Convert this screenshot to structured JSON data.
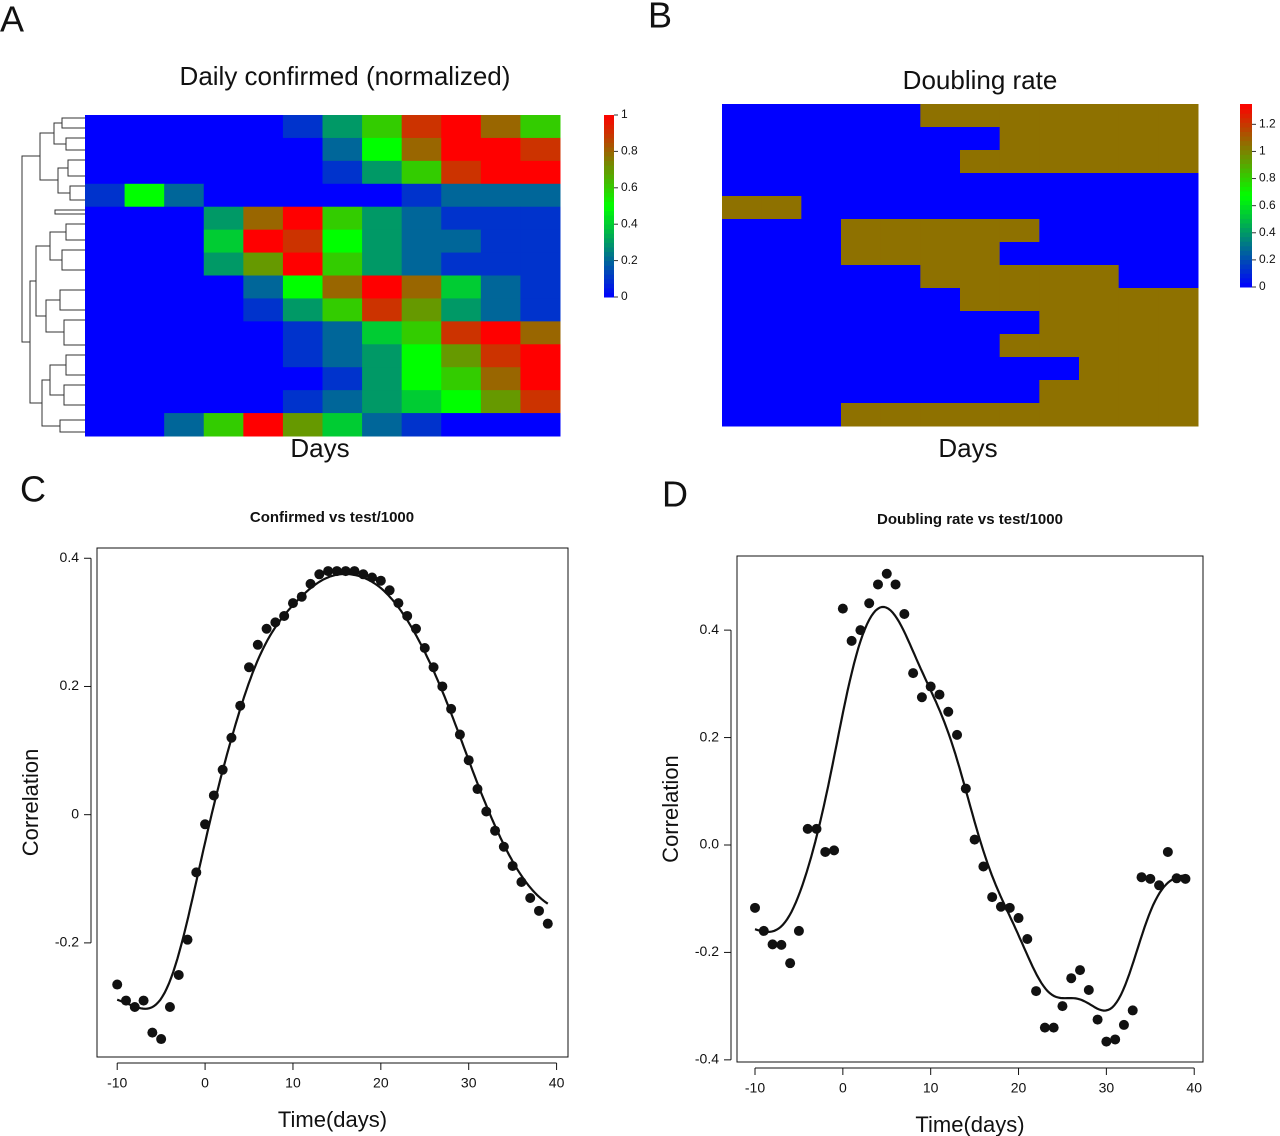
{
  "chart_data": [
    {
      "type": "heatmap",
      "panel": "A",
      "title": "Daily confirmed (normalized)",
      "x_label": "Days",
      "colors": [
        "#0000ff",
        "#00ff00",
        "#ff0000"
      ],
      "zlim": [
        0,
        1
      ],
      "zticks": [
        0,
        0.2,
        0.4,
        0.6,
        0.8,
        1
      ],
      "matrix": [
        [
          0,
          0,
          0,
          0,
          0,
          0.1,
          0.3,
          0.6,
          0.9,
          1,
          0.8,
          0.6
        ],
        [
          0,
          0,
          0,
          0,
          0,
          0,
          0.2,
          0.5,
          0.8,
          1,
          1,
          0.9
        ],
        [
          0,
          0,
          0,
          0,
          0,
          0,
          0.1,
          0.3,
          0.6,
          0.9,
          1,
          1
        ],
        [
          0.1,
          0.5,
          0.2,
          0,
          0,
          0,
          0,
          0,
          0.1,
          0.2,
          0.2,
          0.2
        ],
        [
          0,
          0,
          0,
          0.3,
          0.8,
          1,
          0.6,
          0.3,
          0.2,
          0.1,
          0.1,
          0.1
        ],
        [
          0,
          0,
          0,
          0.4,
          1,
          0.9,
          0.5,
          0.3,
          0.2,
          0.2,
          0.1,
          0.1
        ],
        [
          0,
          0,
          0,
          0.3,
          0.7,
          1,
          0.6,
          0.3,
          0.2,
          0.1,
          0.1,
          0.1
        ],
        [
          0,
          0,
          0,
          0,
          0.2,
          0.5,
          0.8,
          1,
          0.8,
          0.4,
          0.2,
          0.1
        ],
        [
          0,
          0,
          0,
          0,
          0.1,
          0.3,
          0.6,
          0.9,
          0.7,
          0.3,
          0.2,
          0.1
        ],
        [
          0,
          0,
          0,
          0,
          0,
          0.1,
          0.2,
          0.4,
          0.6,
          0.9,
          1,
          0.8
        ],
        [
          0,
          0,
          0,
          0,
          0,
          0.1,
          0.2,
          0.3,
          0.5,
          0.7,
          0.9,
          1
        ],
        [
          0,
          0,
          0,
          0,
          0,
          0,
          0.1,
          0.3,
          0.5,
          0.6,
          0.8,
          1
        ],
        [
          0,
          0,
          0,
          0,
          0,
          0.1,
          0.2,
          0.3,
          0.4,
          0.5,
          0.7,
          0.9
        ],
        [
          0,
          0,
          0.2,
          0.6,
          1,
          0.7,
          0.4,
          0.2,
          0.1,
          0,
          0,
          0
        ]
      ]
    },
    {
      "type": "heatmap",
      "panel": "B",
      "title": "Doubling rate",
      "x_label": "Days",
      "colors": [
        "#0000ff",
        "#00ff00",
        "#ff0000"
      ],
      "zlim": [
        0,
        1.35
      ],
      "zticks": [
        0,
        0.2,
        0.4,
        0.6,
        0.8,
        1,
        1.2
      ],
      "matrix": [
        [
          0,
          0,
          0,
          0,
          0,
          1.05,
          1.05,
          1.05,
          1.05,
          1.05,
          1.05,
          1.05
        ],
        [
          0,
          0,
          0,
          0,
          0,
          0,
          0,
          1.05,
          1.05,
          1.05,
          1.05,
          1.05
        ],
        [
          0,
          0,
          0,
          0,
          0,
          0,
          1.05,
          1.05,
          1.05,
          1.05,
          1.05,
          1.05
        ],
        [
          0,
          0,
          0,
          0,
          0,
          0,
          0,
          0,
          0,
          0,
          0,
          0
        ],
        [
          1.05,
          1.05,
          0,
          0,
          0,
          0,
          0,
          0,
          0,
          0,
          0,
          0
        ],
        [
          0,
          0,
          0,
          1.05,
          1.05,
          1.05,
          1.05,
          1.05,
          0,
          0,
          0,
          0
        ],
        [
          0,
          0,
          0,
          1.05,
          1.05,
          1.05,
          1.05,
          0,
          0,
          0,
          0,
          0
        ],
        [
          0,
          0,
          0,
          0,
          0,
          1.05,
          1.05,
          1.05,
          1.05,
          1.05,
          0,
          0
        ],
        [
          0,
          0,
          0,
          0,
          0,
          0,
          1.05,
          1.05,
          1.05,
          1.05,
          1.05,
          1.05
        ],
        [
          0,
          0,
          0,
          0,
          0,
          0,
          0,
          0,
          1.05,
          1.05,
          1.05,
          1.05
        ],
        [
          0,
          0,
          0,
          0,
          0,
          0,
          0,
          1.05,
          1.05,
          1.05,
          1.05,
          1.05
        ],
        [
          0,
          0,
          0,
          0,
          0,
          0,
          0,
          0,
          0,
          1.05,
          1.05,
          1.05
        ],
        [
          0,
          0,
          0,
          0,
          0,
          0,
          0,
          0,
          1.05,
          1.05,
          1.05,
          1.05
        ],
        [
          0,
          0,
          0,
          1.05,
          1.05,
          1.05,
          1.05,
          1.05,
          1.05,
          1.05,
          1.05,
          1.05
        ]
      ]
    },
    {
      "type": "scatter",
      "panel": "C",
      "title": "Confirmed vs test/1000",
      "x_label": "Time(days)",
      "y_label": "Correlation",
      "color": "#111111",
      "x": [
        -10,
        -9,
        -8,
        -7,
        -6,
        -5,
        -4,
        -3,
        -2,
        -1,
        0,
        1,
        2,
        3,
        4,
        5,
        6,
        7,
        8,
        9,
        10,
        11,
        12,
        13,
        14,
        15,
        16,
        17,
        18,
        19,
        20,
        21,
        22,
        23,
        24,
        25,
        26,
        27,
        28,
        29,
        30,
        31,
        32,
        33,
        34,
        35,
        36,
        37,
        38,
        39
      ],
      "values": [
        -0.265,
        -0.29,
        -0.3,
        -0.29,
        -0.34,
        -0.35,
        -0.3,
        -0.25,
        -0.195,
        -0.09,
        -0.015,
        0.03,
        0.07,
        0.12,
        0.17,
        0.23,
        0.265,
        0.29,
        0.3,
        0.31,
        0.33,
        0.34,
        0.36,
        0.375,
        0.38,
        0.38,
        0.38,
        0.38,
        0.375,
        0.37,
        0.365,
        0.35,
        0.33,
        0.31,
        0.29,
        0.26,
        0.23,
        0.2,
        0.165,
        0.125,
        0.085,
        0.04,
        0.005,
        -0.025,
        -0.05,
        -0.08,
        -0.105,
        -0.13,
        -0.15,
        -0.17
      ],
      "xlim": [
        -12.3,
        41.3
      ],
      "xticks": [
        -10,
        0,
        10,
        20,
        30,
        40
      ],
      "ylim": [
        -0.378,
        0.416
      ],
      "yticks": [
        -0.2,
        0.0,
        0.2,
        0.4
      ]
    },
    {
      "type": "scatter",
      "panel": "D",
      "title": "Doubling rate vs test/1000",
      "x_label": "Time(days)",
      "y_label": "Correlation",
      "color": "#111111",
      "x": [
        -10,
        -9,
        -8,
        -7,
        -6,
        -5,
        -4,
        -3,
        -2,
        -1,
        0,
        1,
        2,
        3,
        4,
        5,
        6,
        7,
        8,
        9,
        10,
        11,
        12,
        13,
        14,
        15,
        16,
        17,
        18,
        19,
        20,
        21,
        22,
        23,
        24,
        25,
        26,
        27,
        28,
        29,
        30,
        31,
        32,
        33,
        34,
        35,
        36,
        37,
        38,
        39
      ],
      "values": [
        -0.117,
        -0.16,
        -0.185,
        -0.186,
        -0.22,
        -0.16,
        0.03,
        0.03,
        -0.013,
        -0.01,
        0.44,
        0.38,
        0.4,
        0.45,
        0.485,
        0.505,
        0.485,
        0.43,
        0.32,
        0.275,
        0.295,
        0.28,
        0.248,
        0.205,
        0.105,
        0.01,
        -0.04,
        -0.097,
        -0.115,
        -0.117,
        -0.136,
        -0.175,
        -0.272,
        -0.34,
        -0.34,
        -0.3,
        -0.248,
        -0.233,
        -0.27,
        -0.325,
        -0.366,
        -0.362,
        -0.335,
        -0.308,
        -0.06,
        -0.063,
        -0.075,
        -0.013,
        -0.062,
        -0.063
      ],
      "xlim": [
        -12.05,
        41.0
      ],
      "xticks": [
        -10,
        0,
        10,
        20,
        30,
        40
      ],
      "ylim": [
        -0.404,
        0.538
      ],
      "yticks": [
        {
          "value": -0.4,
          "label": "-0.4"
        },
        {
          "value": -0.2,
          "label": "-0.2"
        },
        {
          "value": 0.0,
          "label": "0.0"
        },
        {
          "value": 0.2,
          "label": "0.2"
        },
        {
          "value": 0.4,
          "label": "0.4"
        }
      ]
    }
  ]
}
